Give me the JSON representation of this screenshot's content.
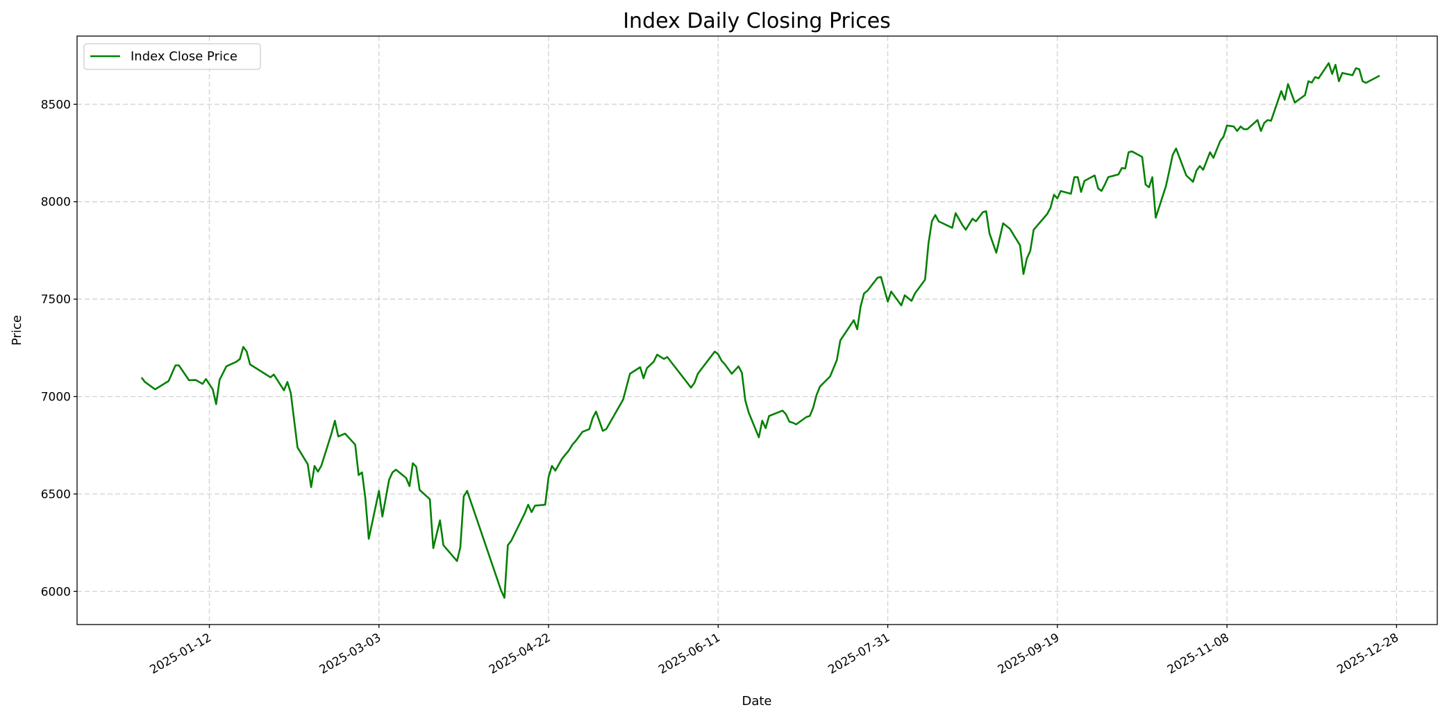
{
  "chart_data": {
    "type": "line",
    "title": "Index Daily Closing Prices",
    "xlabel": "Date",
    "ylabel": "Price",
    "x_ticks": [
      "2025-01-12",
      "2025-03-03",
      "2025-04-22",
      "2025-06-11",
      "2025-07-31",
      "2025-09-19",
      "2025-11-08",
      "2025-12-28"
    ],
    "y_ticks": [
      6000,
      6500,
      7000,
      7500,
      8000,
      8500
    ],
    "xlim": [
      "2024-12-04",
      "2026-01-09"
    ],
    "ylim": [
      5830,
      8850
    ],
    "grid": true,
    "grid_style": "dashed",
    "legend_placement": "top-left",
    "series": [
      {
        "name": "Index Close Price",
        "color": "#008000",
        "x": [
          "2024-12-23",
          "2024-12-24",
          "2024-12-27",
          "2024-12-31",
          "2025-01-02",
          "2025-01-03",
          "2025-01-06",
          "2025-01-08",
          "2025-01-10",
          "2025-01-11",
          "2025-01-13",
          "2025-01-14",
          "2025-01-15",
          "2025-01-17",
          "2025-01-20",
          "2025-01-21",
          "2025-01-22",
          "2025-01-23",
          "2025-01-24",
          "2025-01-30",
          "2025-01-31",
          "2025-02-03",
          "2025-02-04",
          "2025-02-05",
          "2025-02-07",
          "2025-02-10",
          "2025-02-11",
          "2025-02-12",
          "2025-02-13",
          "2025-02-14",
          "2025-02-17",
          "2025-02-18",
          "2025-02-19",
          "2025-02-21",
          "2025-02-24",
          "2025-02-25",
          "2025-02-26",
          "2025-02-27",
          "2025-02-28",
          "2025-03-03",
          "2025-03-04",
          "2025-03-06",
          "2025-03-07",
          "2025-03-08",
          "2025-03-11",
          "2025-03-12",
          "2025-03-13",
          "2025-03-14",
          "2025-03-15",
          "2025-03-18",
          "2025-03-19",
          "2025-03-21",
          "2025-03-22",
          "2025-03-26",
          "2025-03-27",
          "2025-03-28",
          "2025-03-29",
          "2025-04-08",
          "2025-04-09",
          "2025-04-10",
          "2025-04-11",
          "2025-04-15",
          "2025-04-16",
          "2025-04-17",
          "2025-04-18",
          "2025-04-21",
          "2025-04-22",
          "2025-04-23",
          "2025-04-24",
          "2025-04-26",
          "2025-04-28",
          "2025-04-29",
          "2025-04-30",
          "2025-05-02",
          "2025-05-04",
          "2025-05-05",
          "2025-05-06",
          "2025-05-08",
          "2025-05-09",
          "2025-05-14",
          "2025-05-16",
          "2025-05-19",
          "2025-05-20",
          "2025-05-21",
          "2025-05-23",
          "2025-05-24",
          "2025-05-26",
          "2025-05-27",
          "2025-06-03",
          "2025-06-04",
          "2025-06-05",
          "2025-06-10",
          "2025-06-11",
          "2025-06-12",
          "2025-06-13",
          "2025-06-15",
          "2025-06-17",
          "2025-06-18",
          "2025-06-19",
          "2025-06-20",
          "2025-06-23",
          "2025-06-24",
          "2025-06-25",
          "2025-06-26",
          "2025-06-30",
          "2025-07-01",
          "2025-07-02",
          "2025-07-03",
          "2025-07-04",
          "2025-07-07",
          "2025-07-08",
          "2025-07-09",
          "2025-07-10",
          "2025-07-11",
          "2025-07-14",
          "2025-07-16",
          "2025-07-17",
          "2025-07-21",
          "2025-07-22",
          "2025-07-23",
          "2025-07-24",
          "2025-07-25",
          "2025-07-28",
          "2025-07-29",
          "2025-07-31",
          "2025-08-01",
          "2025-08-04",
          "2025-08-05",
          "2025-08-07",
          "2025-08-08",
          "2025-08-11",
          "2025-08-12",
          "2025-08-13",
          "2025-08-14",
          "2025-08-15",
          "2025-08-19",
          "2025-08-20",
          "2025-08-22",
          "2025-08-23",
          "2025-08-25",
          "2025-08-26",
          "2025-08-28",
          "2025-08-29",
          "2025-08-30",
          "2025-09-01",
          "2025-09-03",
          "2025-09-05",
          "2025-09-08",
          "2025-09-09",
          "2025-09-10",
          "2025-09-11",
          "2025-09-12",
          "2025-09-16",
          "2025-09-17",
          "2025-09-18",
          "2025-09-19",
          "2025-09-20",
          "2025-09-23",
          "2025-09-24",
          "2025-09-25",
          "2025-09-26",
          "2025-09-27",
          "2025-09-30",
          "2025-10-01",
          "2025-10-02",
          "2025-10-03",
          "2025-10-04",
          "2025-10-07",
          "2025-10-08",
          "2025-10-09",
          "2025-10-10",
          "2025-10-11",
          "2025-10-14",
          "2025-10-15",
          "2025-10-16",
          "2025-10-17",
          "2025-10-18",
          "2025-10-21",
          "2025-10-22",
          "2025-10-23",
          "2025-10-24",
          "2025-10-27",
          "2025-10-29",
          "2025-10-30",
          "2025-10-31",
          "2025-11-01",
          "2025-11-03",
          "2025-11-04",
          "2025-11-06",
          "2025-11-07",
          "2025-11-08",
          "2025-11-10",
          "2025-11-11",
          "2025-11-12",
          "2025-11-13",
          "2025-11-14",
          "2025-11-17",
          "2025-11-18",
          "2025-11-19",
          "2025-11-20",
          "2025-11-21",
          "2025-11-24",
          "2025-11-25",
          "2025-11-26",
          "2025-11-28",
          "2025-12-01",
          "2025-12-02",
          "2025-12-03",
          "2025-12-04",
          "2025-12-05",
          "2025-12-08",
          "2025-12-09",
          "2025-12-10",
          "2025-12-11",
          "2025-12-12",
          "2025-12-15",
          "2025-12-16",
          "2025-12-17",
          "2025-12-18",
          "2025-12-19",
          "2025-12-23"
        ],
        "y": [
          7098,
          7075,
          7037,
          7080,
          7160,
          7160,
          7084,
          7085,
          7065,
          7090,
          7037,
          6961,
          7085,
          7155,
          7179,
          7193,
          7255,
          7231,
          7165,
          7099,
          7113,
          7032,
          7075,
          7018,
          6739,
          6653,
          6535,
          6644,
          6615,
          6644,
          6810,
          6876,
          6795,
          6810,
          6753,
          6597,
          6611,
          6478,
          6270,
          6516,
          6384,
          6573,
          6611,
          6625,
          6582,
          6540,
          6658,
          6639,
          6521,
          6473,
          6222,
          6365,
          6237,
          6156,
          6227,
          6488,
          6516,
          6005,
          5967,
          6237,
          6260,
          6402,
          6445,
          6407,
          6440,
          6445,
          6587,
          6644,
          6620,
          6682,
          6724,
          6753,
          6772,
          6819,
          6833,
          6890,
          6923,
          6824,
          6833,
          6985,
          7117,
          7151,
          7094,
          7146,
          7179,
          7215,
          7193,
          7203,
          7046,
          7070,
          7117,
          7231,
          7217,
          7184,
          7165,
          7117,
          7155,
          7122,
          6980,
          6918,
          6791,
          6876,
          6838,
          6900,
          6928,
          6909,
          6871,
          6866,
          6857,
          6895,
          6900,
          6942,
          7008,
          7051,
          7103,
          7188,
          7288,
          7392,
          7345,
          7463,
          7529,
          7543,
          7610,
          7614,
          7487,
          7539,
          7468,
          7520,
          7491,
          7529,
          7600,
          7785,
          7899,
          7932,
          7899,
          7866,
          7941,
          7880,
          7856,
          7913,
          7899,
          7946,
          7951,
          7837,
          7738,
          7889,
          7861,
          7776,
          7629,
          7709,
          7747,
          7856,
          7937,
          7970,
          8036,
          8017,
          8055,
          8041,
          8126,
          8126,
          8050,
          8107,
          8135,
          8069,
          8055,
          8088,
          8126,
          8140,
          8173,
          8170,
          8254,
          8258,
          8230,
          8088,
          8074,
          8126,
          7918,
          8080,
          8159,
          8240,
          8273,
          8135,
          8102,
          8159,
          8183,
          8164,
          8254,
          8225,
          8311,
          8334,
          8391,
          8386,
          8363,
          8386,
          8372,
          8372,
          8419,
          8363,
          8405,
          8419,
          8415,
          8568,
          8523,
          8604,
          8509,
          8547,
          8618,
          8611,
          8640,
          8633,
          8711,
          8656,
          8703,
          8618,
          8661,
          8649,
          8685,
          8680,
          8618,
          8610,
          8647
        ]
      }
    ]
  }
}
